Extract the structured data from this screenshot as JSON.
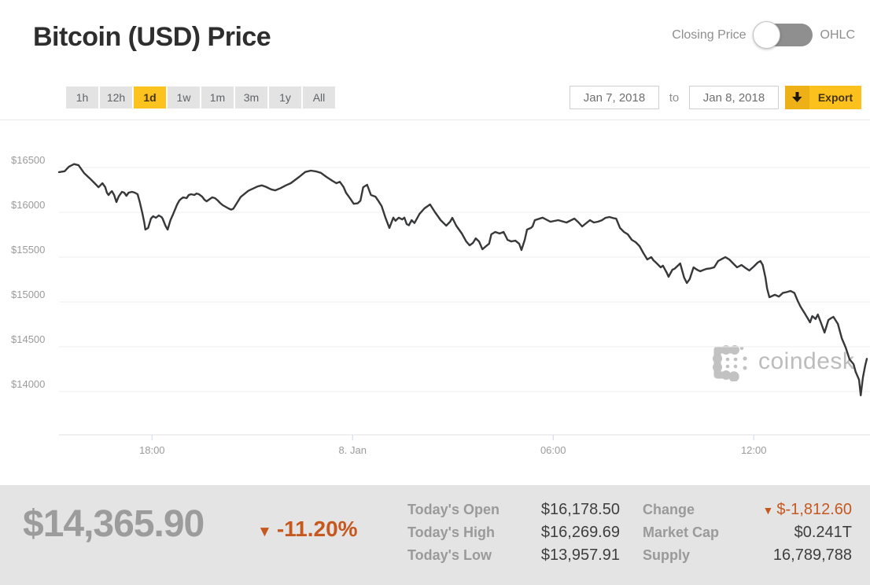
{
  "header": {
    "title": "Bitcoin (USD) Price",
    "series_toggle": {
      "left_label": "Closing Price",
      "right_label": "OHLC",
      "state": "closing-price"
    }
  },
  "toolbar": {
    "ranges": [
      "1h",
      "12h",
      "1d",
      "1w",
      "1m",
      "3m",
      "1y",
      "All"
    ],
    "selected_range": "1d",
    "date_from": "Jan 7, 2018",
    "to_word": "to",
    "date_to": "Jan 8, 2018",
    "export_label": "Export",
    "export_icon": "download-arrow"
  },
  "watermark": {
    "brand": "coindesk"
  },
  "colors": {
    "accent_yellow": "#fcc21d",
    "orange": "#c6581f",
    "price_line": "#37383a",
    "gridline": "#ececec",
    "axis_line": "#e0e0e0",
    "axis_tick": "#ccd6eb",
    "axis_label": "#9b9b9b",
    "footer_bg": "#e4e4e4",
    "big_price_gray": "#9c9c9c",
    "watermark_gray": "#c2c2c2"
  },
  "chart_data": {
    "type": "line",
    "title": "Bitcoin (USD) Price",
    "series_name": "Closing Price (USD)",
    "x_axis": {
      "unit": "minutes from chart start (Jan 7 ~15:15 to Jan 8 ~15:25)",
      "range": [
        0,
        1450
      ],
      "ticks": [
        {
          "label": "18:00",
          "m": 167
        },
        {
          "label": "8. Jan",
          "m": 527
        },
        {
          "label": "06:00",
          "m": 887
        },
        {
          "label": "12:00",
          "m": 1247
        }
      ]
    },
    "y_axis": {
      "tick_labels": [
        "$16500",
        "$16000",
        "$15500",
        "$15000",
        "$14500",
        "$14000"
      ],
      "tick_values": [
        16500,
        16000,
        15500,
        15000,
        14500,
        14000
      ],
      "grid": true
    },
    "series": [
      {
        "name": "Closing Price",
        "points": [
          [
            0,
            16448
          ],
          [
            10,
            16458
          ],
          [
            18,
            16510
          ],
          [
            27,
            16538
          ],
          [
            35,
            16525
          ],
          [
            45,
            16438
          ],
          [
            55,
            16380
          ],
          [
            64,
            16325
          ],
          [
            71,
            16280
          ],
          [
            75,
            16305
          ],
          [
            78,
            16325
          ],
          [
            83,
            16280
          ],
          [
            86,
            16219
          ],
          [
            89,
            16193
          ],
          [
            92,
            16219
          ],
          [
            95,
            16236
          ],
          [
            99,
            16193
          ],
          [
            103,
            16114
          ],
          [
            107,
            16175
          ],
          [
            113,
            16228
          ],
          [
            117,
            16219
          ],
          [
            121,
            16184
          ],
          [
            125,
            16219
          ],
          [
            131,
            16228
          ],
          [
            136,
            16219
          ],
          [
            141,
            16202
          ],
          [
            145,
            16114
          ],
          [
            150,
            15982
          ],
          [
            153,
            15886
          ],
          [
            155,
            15807
          ],
          [
            160,
            15825
          ],
          [
            165,
            15930
          ],
          [
            169,
            15956
          ],
          [
            174,
            15939
          ],
          [
            179,
            15965
          ],
          [
            184,
            15947
          ],
          [
            186,
            15930
          ],
          [
            191,
            15851
          ],
          [
            195,
            15807
          ],
          [
            200,
            15912
          ],
          [
            205,
            15982
          ],
          [
            208,
            16026
          ],
          [
            212,
            16088
          ],
          [
            216,
            16132
          ],
          [
            219,
            16149
          ],
          [
            223,
            16167
          ],
          [
            229,
            16158
          ],
          [
            233,
            16193
          ],
          [
            237,
            16202
          ],
          [
            243,
            16193
          ],
          [
            247,
            16210
          ],
          [
            251,
            16202
          ],
          [
            257,
            16175
          ],
          [
            261,
            16140
          ],
          [
            265,
            16123
          ],
          [
            271,
            16149
          ],
          [
            275,
            16167
          ],
          [
            280,
            16158
          ],
          [
            285,
            16132
          ],
          [
            289,
            16105
          ],
          [
            294,
            16079
          ],
          [
            299,
            16061
          ],
          [
            304,
            16044
          ],
          [
            309,
            16030
          ],
          [
            313,
            16040
          ],
          [
            318,
            16090
          ],
          [
            326,
            16170
          ],
          [
            340,
            16240
          ],
          [
            357,
            16290
          ],
          [
            364,
            16300
          ],
          [
            371,
            16285
          ],
          [
            381,
            16255
          ],
          [
            388,
            16245
          ],
          [
            398,
            16270
          ],
          [
            407,
            16300
          ],
          [
            416,
            16325
          ],
          [
            431,
            16395
          ],
          [
            442,
            16450
          ],
          [
            452,
            16465
          ],
          [
            462,
            16455
          ],
          [
            470,
            16440
          ],
          [
            480,
            16395
          ],
          [
            491,
            16350
          ],
          [
            498,
            16325
          ],
          [
            504,
            16340
          ],
          [
            511,
            16280
          ],
          [
            515,
            16219
          ],
          [
            522,
            16160
          ],
          [
            529,
            16095
          ],
          [
            536,
            16100
          ],
          [
            541,
            16130
          ],
          [
            546,
            16280
          ],
          [
            553,
            16307
          ],
          [
            560,
            16193
          ],
          [
            568,
            16175
          ],
          [
            573,
            16130
          ],
          [
            579,
            16070
          ],
          [
            586,
            15940
          ],
          [
            593,
            15825
          ],
          [
            600,
            15940
          ],
          [
            604,
            15905
          ],
          [
            610,
            15940
          ],
          [
            616,
            15920
          ],
          [
            620,
            15940
          ],
          [
            624,
            15868
          ],
          [
            628,
            15855
          ],
          [
            633,
            15912
          ],
          [
            638,
            15880
          ],
          [
            647,
            15982
          ],
          [
            656,
            16044
          ],
          [
            666,
            16088
          ],
          [
            675,
            16000
          ],
          [
            685,
            15912
          ],
          [
            695,
            15851
          ],
          [
            702,
            15895
          ],
          [
            706,
            15939
          ],
          [
            713,
            15851
          ],
          [
            723,
            15763
          ],
          [
            731,
            15675
          ],
          [
            737,
            15632
          ],
          [
            743,
            15658
          ],
          [
            748,
            15710
          ],
          [
            754,
            15675
          ],
          [
            760,
            15588
          ],
          [
            767,
            15625
          ],
          [
            772,
            15650
          ],
          [
            776,
            15754
          ],
          [
            783,
            15781
          ],
          [
            791,
            15763
          ],
          [
            798,
            15781
          ],
          [
            805,
            15693
          ],
          [
            812,
            15675
          ],
          [
            819,
            15684
          ],
          [
            826,
            15650
          ],
          [
            830,
            15579
          ],
          [
            836,
            15693
          ],
          [
            840,
            15807
          ],
          [
            847,
            15825
          ],
          [
            850,
            15842
          ],
          [
            854,
            15912
          ],
          [
            868,
            15940
          ],
          [
            882,
            15895
          ],
          [
            896,
            15912
          ],
          [
            911,
            15886
          ],
          [
            925,
            15930
          ],
          [
            932,
            15890
          ],
          [
            939,
            15842
          ],
          [
            946,
            15877
          ],
          [
            953,
            15912
          ],
          [
            960,
            15886
          ],
          [
            967,
            15895
          ],
          [
            974,
            15910
          ],
          [
            981,
            15939
          ],
          [
            988,
            15947
          ],
          [
            995,
            15935
          ],
          [
            1000,
            15930
          ],
          [
            1007,
            15825
          ],
          [
            1014,
            15781
          ],
          [
            1021,
            15754
          ],
          [
            1028,
            15693
          ],
          [
            1035,
            15667
          ],
          [
            1042,
            15623
          ],
          [
            1049,
            15544
          ],
          [
            1056,
            15474
          ],
          [
            1063,
            15500
          ],
          [
            1067,
            15465
          ],
          [
            1073,
            15430
          ],
          [
            1080,
            15386
          ],
          [
            1084,
            15404
          ],
          [
            1091,
            15325
          ],
          [
            1094,
            15281
          ],
          [
            1101,
            15360
          ],
          [
            1105,
            15370
          ],
          [
            1112,
            15412
          ],
          [
            1115,
            15430
          ],
          [
            1122,
            15272
          ],
          [
            1127,
            15211
          ],
          [
            1132,
            15255
          ],
          [
            1139,
            15386
          ],
          [
            1145,
            15360
          ],
          [
            1151,
            15342
          ],
          [
            1156,
            15355
          ],
          [
            1162,
            15368
          ],
          [
            1169,
            15375
          ],
          [
            1176,
            15386
          ],
          [
            1183,
            15456
          ],
          [
            1190,
            15480
          ],
          [
            1196,
            15500
          ],
          [
            1203,
            15474
          ],
          [
            1210,
            15430
          ],
          [
            1217,
            15386
          ],
          [
            1225,
            15412
          ],
          [
            1232,
            15380
          ],
          [
            1239,
            15351
          ],
          [
            1247,
            15395
          ],
          [
            1254,
            15439
          ],
          [
            1259,
            15456
          ],
          [
            1263,
            15412
          ],
          [
            1268,
            15272
          ],
          [
            1271,
            15149
          ],
          [
            1275,
            15053
          ],
          [
            1285,
            15080
          ],
          [
            1292,
            15060
          ],
          [
            1299,
            15100
          ],
          [
            1306,
            15110
          ],
          [
            1313,
            15123
          ],
          [
            1320,
            15100
          ],
          [
            1326,
            15010
          ],
          [
            1331,
            14947
          ],
          [
            1338,
            14877
          ],
          [
            1344,
            14816
          ],
          [
            1348,
            14772
          ],
          [
            1352,
            14842
          ],
          [
            1358,
            14810
          ],
          [
            1362,
            14860
          ],
          [
            1369,
            14746
          ],
          [
            1374,
            14658
          ],
          [
            1381,
            14798
          ],
          [
            1386,
            14820
          ],
          [
            1390,
            14833
          ],
          [
            1398,
            14754
          ],
          [
            1405,
            14596
          ],
          [
            1412,
            14491
          ],
          [
            1419,
            14360
          ],
          [
            1426,
            14307
          ],
          [
            1430,
            14219
          ],
          [
            1436,
            14132
          ],
          [
            1439,
            13958
          ],
          [
            1443,
            14158
          ],
          [
            1447,
            14290
          ],
          [
            1450,
            14366
          ]
        ]
      }
    ],
    "legend": false,
    "watermark": "coindesk"
  },
  "footer": {
    "current_price": "$14,365.90",
    "change_direction": "down",
    "down_triangle": "▼",
    "change_pct": "-11.20%",
    "stats_left": [
      {
        "label": "Today's Open",
        "value": "$16,178.50"
      },
      {
        "label": "Today's High",
        "value": "$16,269.69"
      },
      {
        "label": "Today's Low",
        "value": "$13,957.91"
      }
    ],
    "stats_right": [
      {
        "label": "Change",
        "value": "$-1,812.60",
        "direction": "down"
      },
      {
        "label": "Market Cap",
        "value": "$0.241T"
      },
      {
        "label": "Supply",
        "value": "16,789,788"
      }
    ]
  }
}
